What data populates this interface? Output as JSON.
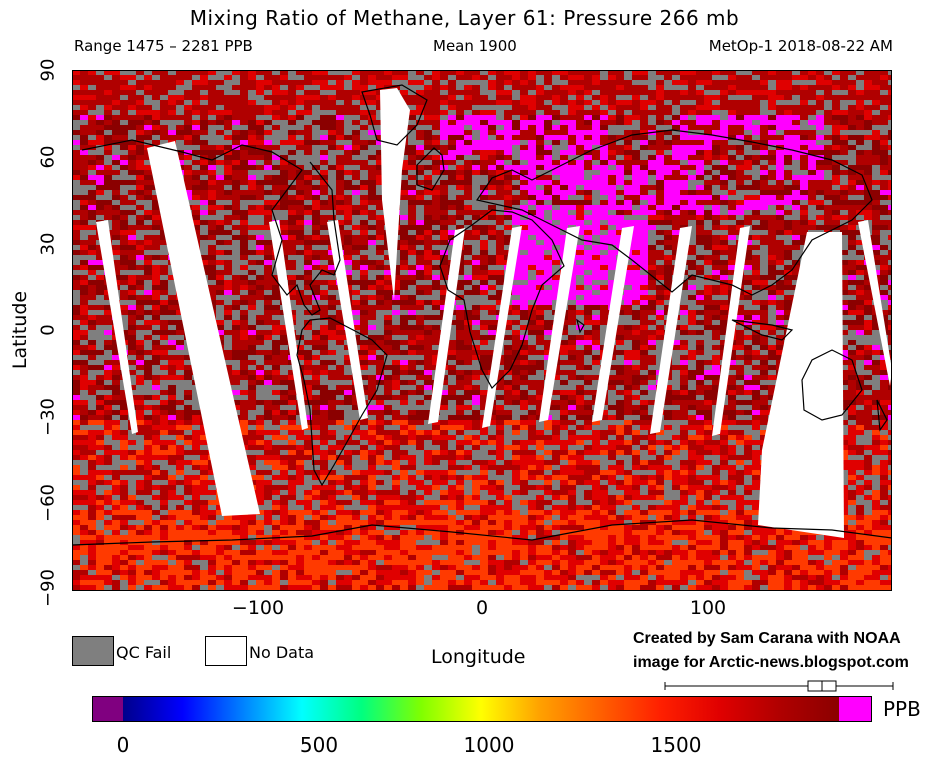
{
  "header": {
    "title": "Mixing Ratio of Methane, Layer 61: Pressure 266 mb",
    "range_text": "Range 1475 – 2281 PPB",
    "mean_text": "Mean 1900",
    "satellite_text": "MetOp-1 2018-08-22 AM"
  },
  "axes": {
    "y_label": "Latitude",
    "x_label": "Longitude",
    "y_ticks": [
      "90",
      "60",
      "30",
      "0",
      "−30",
      "−60",
      "−90"
    ],
    "x_ticks": [
      "−100",
      "0",
      "100"
    ]
  },
  "legend": {
    "qc_fail": "QC Fail",
    "no_data": "No Data",
    "qc_fail_color": "#7f7f7f",
    "no_data_color": "#ffffff"
  },
  "credit": {
    "line1": "Created by Sam Carana with NOAA",
    "line2": "image for Arctic-news.blogspot.com"
  },
  "colorbar": {
    "unit": "PPB",
    "ticks": [
      "0",
      "500",
      "1000",
      "1500"
    ],
    "colors": [
      "#800080",
      "#00008b",
      "#0000ff",
      "#0080ff",
      "#00ffff",
      "#00ff80",
      "#80ff00",
      "#ffff00",
      "#ffa000",
      "#ff6000",
      "#ff2000",
      "#e00000",
      "#b00000",
      "#8b0000",
      "#ff00ff"
    ]
  },
  "map": {
    "lon_range": [
      -180,
      180
    ],
    "lat_range": [
      -90,
      90
    ],
    "colors": {
      "qc_fail": "#7f7f7f",
      "low": "#ff3a00",
      "mid": "#e00000",
      "high": "#b00000",
      "peak": "#8b0000",
      "over": "#ff00ff",
      "no_data": "#ffffff"
    }
  }
}
